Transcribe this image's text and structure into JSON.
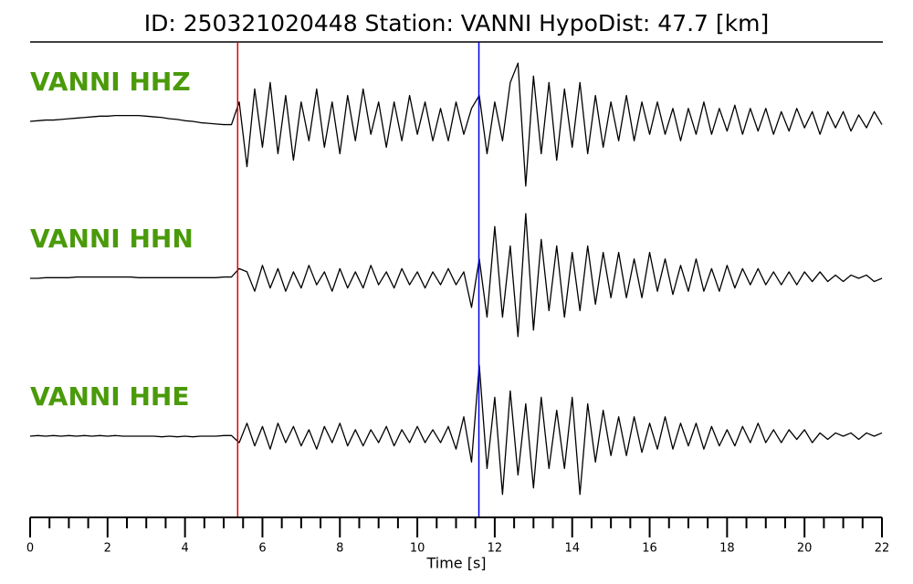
{
  "chart_data": {
    "type": "waveform",
    "title": "ID: 250321020448   Station: VANNI   HypoDist:    47.7 [km]",
    "xlabel": "Time [s]",
    "xlim": [
      0,
      22
    ],
    "xticks": [
      0,
      2,
      4,
      6,
      8,
      10,
      12,
      14,
      16,
      18,
      20,
      22
    ],
    "xminorticks": [
      0.5,
      1,
      1.5,
      2.5,
      3,
      3.5,
      4.5,
      5,
      5.5,
      6.5,
      7,
      7.5,
      8.5,
      9,
      9.5,
      10.5,
      11,
      11.5,
      12.5,
      13,
      13.5,
      14.5,
      15,
      15.5,
      16.5,
      17,
      17.5,
      18.5,
      19,
      19.5,
      20.5,
      21,
      21.5
    ],
    "ylim": [
      -1.1,
      1.1
    ],
    "picks": [
      {
        "time": 5.36,
        "color": "#e00000"
      },
      {
        "time": 11.59,
        "color": "#0000dd"
      }
    ],
    "label_color": "#4a9a0a",
    "x": [
      0,
      0.2,
      0.4,
      0.6,
      0.8,
      1,
      1.2,
      1.4,
      1.6,
      1.8,
      2,
      2.2,
      2.4,
      2.6,
      2.8,
      3,
      3.2,
      3.4,
      3.6,
      3.8,
      4,
      4.2,
      4.4,
      4.6,
      4.8,
      5,
      5.2,
      5.4,
      5.6,
      5.8,
      6,
      6.2,
      6.4,
      6.6,
      6.8,
      7,
      7.2,
      7.4,
      7.6,
      7.8,
      8,
      8.2,
      8.4,
      8.6,
      8.8,
      9,
      9.2,
      9.4,
      9.6,
      9.8,
      10,
      10.2,
      10.4,
      10.6,
      10.8,
      11,
      11.2,
      11.4,
      11.6,
      11.8,
      12,
      12.2,
      12.4,
      12.6,
      12.8,
      13,
      13.2,
      13.4,
      13.6,
      13.8,
      14,
      14.2,
      14.4,
      14.6,
      14.8,
      15,
      15.2,
      15.4,
      15.6,
      15.8,
      16,
      16.2,
      16.4,
      16.6,
      16.8,
      17,
      17.2,
      17.4,
      17.6,
      17.8,
      18,
      18.2,
      18.4,
      18.6,
      18.8,
      19,
      19.2,
      19.4,
      19.6,
      19.8,
      20,
      20.2,
      20.4,
      20.6,
      20.8,
      21,
      21.2,
      21.4,
      21.6,
      21.8,
      22
    ],
    "series": [
      {
        "name": "VANNI HHZ",
        "color": "#000000",
        "values": [
          0,
          0.01,
          0.02,
          0.02,
          0.03,
          0.04,
          0.05,
          0.06,
          0.07,
          0.08,
          0.08,
          0.09,
          0.09,
          0.09,
          0.09,
          0.08,
          0.07,
          0.06,
          0.04,
          0.03,
          0.01,
          0,
          -0.02,
          -0.03,
          -0.04,
          -0.05,
          -0.05,
          0.3,
          -0.7,
          0.5,
          -0.4,
          0.6,
          -0.5,
          0.4,
          -0.6,
          0.3,
          -0.3,
          0.5,
          -0.4,
          0.3,
          -0.5,
          0.4,
          -0.3,
          0.5,
          -0.2,
          0.3,
          -0.4,
          0.3,
          -0.3,
          0.4,
          -0.2,
          0.3,
          -0.3,
          0.2,
          -0.3,
          0.3,
          -0.2,
          0.2,
          0.4,
          -0.5,
          0.3,
          -0.3,
          0.6,
          0.9,
          -1.0,
          0.7,
          -0.5,
          0.6,
          -0.6,
          0.5,
          -0.4,
          0.6,
          -0.5,
          0.4,
          -0.4,
          0.3,
          -0.3,
          0.4,
          -0.3,
          0.3,
          -0.2,
          0.3,
          -0.2,
          0.2,
          -0.3,
          0.2,
          -0.2,
          0.3,
          -0.2,
          0.2,
          -0.15,
          0.25,
          -0.2,
          0.2,
          -0.15,
          0.2,
          -0.2,
          0.15,
          -0.15,
          0.2,
          -0.1,
          0.15,
          -0.2,
          0.15,
          -0.1,
          0.15,
          -0.15,
          0.1,
          -0.1,
          0.15,
          -0.05
        ]
      },
      {
        "name": "VANNI HHN",
        "color": "#000000",
        "values": [
          0,
          0,
          0.01,
          0.01,
          0.01,
          0.01,
          0.02,
          0.02,
          0.02,
          0.02,
          0.02,
          0.02,
          0.02,
          0.02,
          0.01,
          0.01,
          0.01,
          0.01,
          0.01,
          0.01,
          0.01,
          0.01,
          0.01,
          0.01,
          0.01,
          0.02,
          0.02,
          0.15,
          0.1,
          -0.2,
          0.2,
          -0.15,
          0.15,
          -0.2,
          0.1,
          -0.15,
          0.2,
          -0.1,
          0.1,
          -0.2,
          0.15,
          -0.15,
          0.1,
          -0.15,
          0.2,
          -0.1,
          0.1,
          -0.15,
          0.15,
          -0.1,
          0.1,
          -0.15,
          0.1,
          -0.1,
          0.15,
          -0.1,
          0.1,
          -0.45,
          0.3,
          -0.6,
          0.8,
          -0.6,
          0.5,
          -0.9,
          1.0,
          -0.8,
          0.6,
          -0.5,
          0.5,
          -0.6,
          0.4,
          -0.5,
          0.5,
          -0.4,
          0.4,
          -0.3,
          0.4,
          -0.3,
          0.3,
          -0.3,
          0.4,
          -0.2,
          0.3,
          -0.25,
          0.2,
          -0.2,
          0.3,
          -0.2,
          0.15,
          -0.2,
          0.2,
          -0.15,
          0.15,
          -0.1,
          0.15,
          -0.1,
          0.1,
          -0.1,
          0.1,
          -0.1,
          0.1,
          -0.05,
          0.1,
          -0.05,
          0.05,
          -0.05,
          0.05,
          0,
          0.05,
          -0.05,
          0
        ]
      },
      {
        "name": "VANNI HHE",
        "color": "#000000",
        "values": [
          0,
          0.01,
          0,
          0.01,
          0,
          0.01,
          0,
          0.01,
          0,
          0.01,
          0,
          0.01,
          0,
          0,
          0,
          0,
          0,
          -0.01,
          0,
          -0.01,
          0,
          -0.01,
          0,
          0,
          0,
          0.01,
          0.01,
          -0.1,
          0.2,
          -0.15,
          0.15,
          -0.2,
          0.2,
          -0.1,
          0.15,
          -0.15,
          0.1,
          -0.2,
          0.15,
          -0.1,
          0.2,
          -0.15,
          0.1,
          -0.15,
          0.1,
          -0.1,
          0.15,
          -0.15,
          0.1,
          -0.1,
          0.15,
          -0.1,
          0.1,
          -0.1,
          0.15,
          -0.2,
          0.3,
          -0.4,
          1.1,
          -0.5,
          0.6,
          -0.9,
          0.7,
          -0.6,
          0.5,
          -0.8,
          0.6,
          -0.5,
          0.4,
          -0.5,
          0.6,
          -0.9,
          0.5,
          -0.4,
          0.4,
          -0.3,
          0.3,
          -0.3,
          0.3,
          -0.25,
          0.2,
          -0.2,
          0.3,
          -0.2,
          0.2,
          -0.15,
          0.2,
          -0.2,
          0.15,
          -0.15,
          0.1,
          -0.15,
          0.15,
          -0.1,
          0.2,
          -0.1,
          0.1,
          -0.1,
          0.1,
          -0.05,
          0.1,
          -0.1,
          0.05,
          -0.05,
          0.05,
          0,
          0.05,
          -0.05,
          0.05,
          0,
          0.05
        ]
      }
    ]
  }
}
